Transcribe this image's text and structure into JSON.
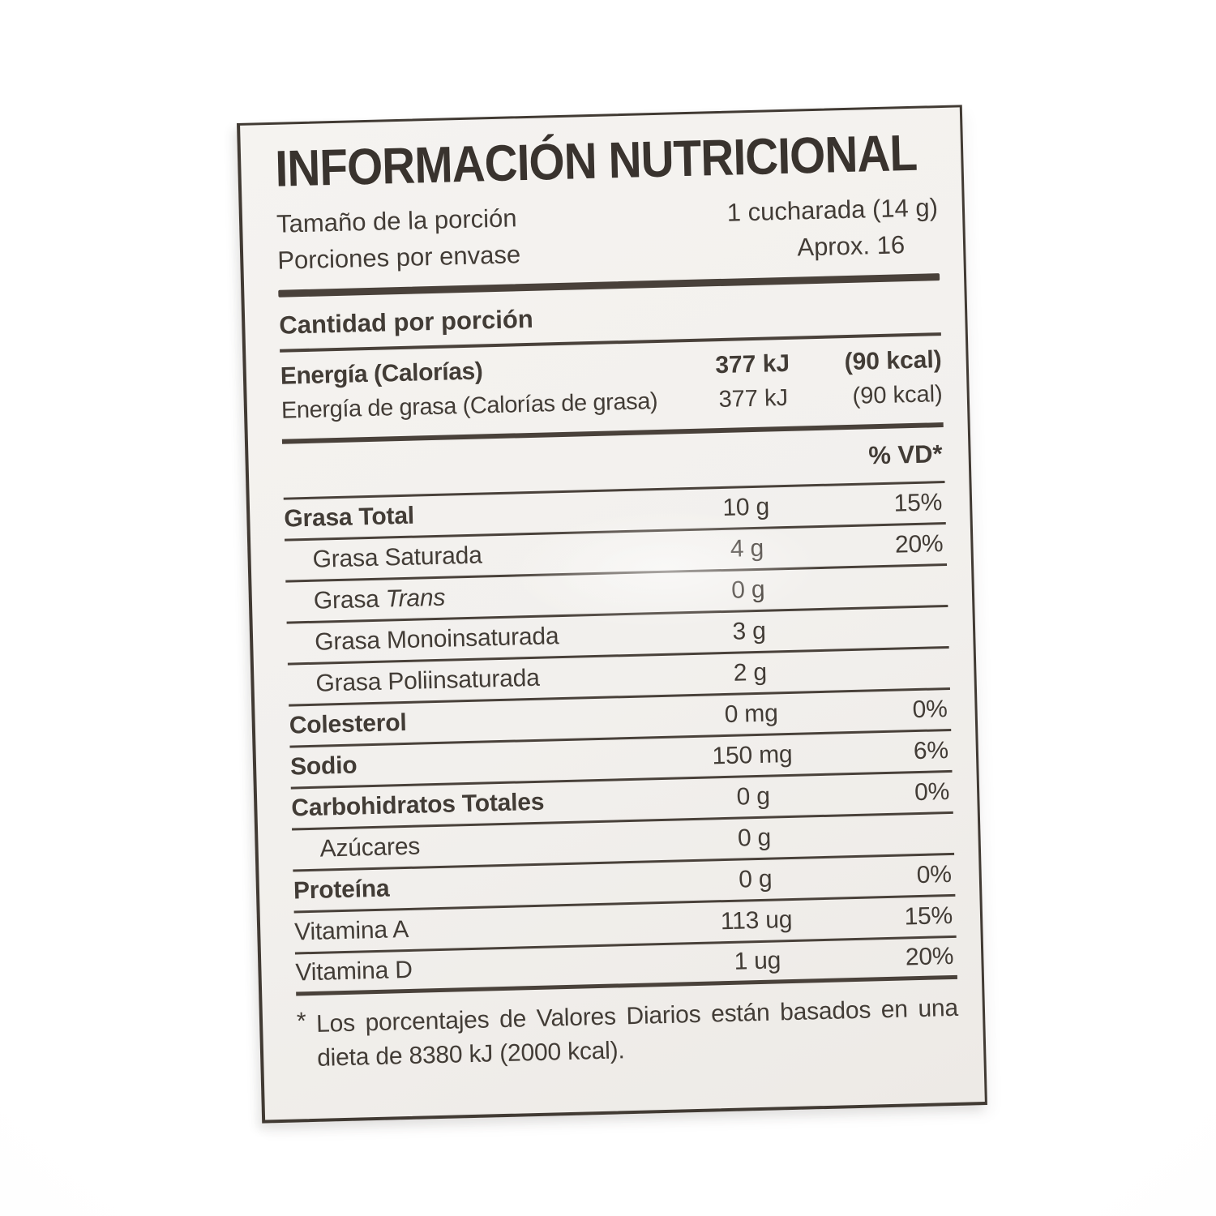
{
  "photo": {
    "background_color": "#ffffff"
  },
  "label": {
    "title": "INFORMACIÓN NUTRICIONAL",
    "serving": {
      "size_label": "Tamaño de la porción",
      "size_value": "1 cucharada (14 g)",
      "servings_label": "Porciones por envase",
      "servings_value": "Aprox. 16"
    },
    "amount_header": "Cantidad por porción",
    "energy_rows": [
      {
        "name": "Energía (Calorías)",
        "kj": "377 kJ",
        "kcal": "(90 kcal)",
        "bold": true
      },
      {
        "name": "Energía de grasa (Calorías de grasa)",
        "kj": "377 kJ",
        "kcal": "(90 kcal)",
        "bold": false
      }
    ],
    "dv_header": "% VD*",
    "nutrients": [
      {
        "name": "Grasa Total",
        "amount": "10 g",
        "dv": "15%",
        "bold": true,
        "indent": false
      },
      {
        "name": "Grasa Saturada",
        "amount": "4 g",
        "dv": "20%",
        "bold": false,
        "indent": true
      },
      {
        "name": "Grasa ",
        "name_italic": "Trans",
        "amount": "0 g",
        "dv": "",
        "bold": false,
        "indent": true
      },
      {
        "name": "Grasa Monoinsaturada",
        "amount": "3 g",
        "dv": "",
        "bold": false,
        "indent": true
      },
      {
        "name": "Grasa Poliinsaturada",
        "amount": "2 g",
        "dv": "",
        "bold": false,
        "indent": true
      },
      {
        "name": "Colesterol",
        "amount": "0 mg",
        "dv": "0%",
        "bold": true,
        "indent": false
      },
      {
        "name": "Sodio",
        "amount": "150 mg",
        "dv": "6%",
        "bold": true,
        "indent": false
      },
      {
        "name": "Carbohidratos Totales",
        "amount": "0 g",
        "dv": "0%",
        "bold": true,
        "indent": false
      },
      {
        "name": "Azúcares",
        "amount": "0 g",
        "dv": "",
        "bold": false,
        "indent": true
      },
      {
        "name": "Proteína",
        "amount": "0 g",
        "dv": "0%",
        "bold": true,
        "indent": false
      },
      {
        "name": "Vitamina A",
        "amount": "113 ug",
        "dv": "15%",
        "bold": false,
        "indent": false
      },
      {
        "name": "Vitamina D",
        "amount": "1 ug",
        "dv": "20%",
        "bold": false,
        "indent": false
      }
    ],
    "footnote": {
      "marker": "*",
      "line1": "Los porcentajes de Valores Diarios están basados en una",
      "line2": "dieta de 8380 kJ (2000 kcal)."
    },
    "colors": {
      "text": "#423c36",
      "rule": "#49413a",
      "label_background": "#f2f0ed"
    }
  }
}
